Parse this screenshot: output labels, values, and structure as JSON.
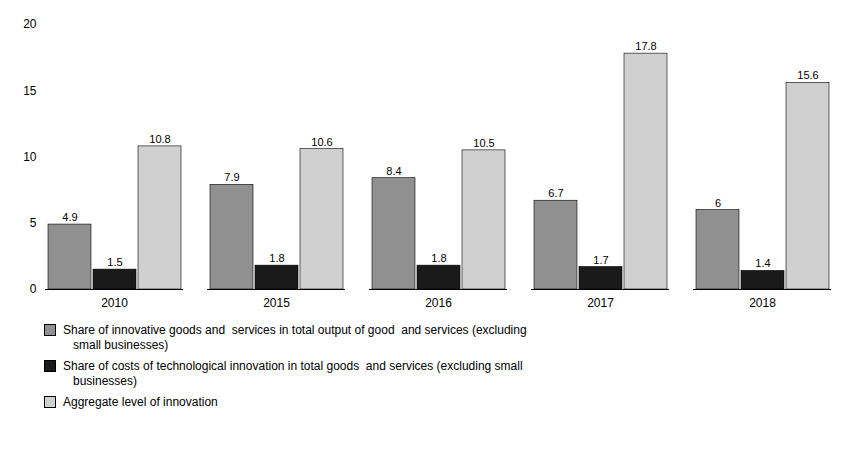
{
  "chart_data": {
    "type": "bar",
    "categories": [
      "2010",
      "2015",
      "2016",
      "2017",
      "2018"
    ],
    "series": [
      {
        "name": "Share of innovative goods and  services in total output of good  and services (excluding\n   small businesses)",
        "color": "#909090",
        "values": [
          4.9,
          7.9,
          8.4,
          6.7,
          6.0
        ]
      },
      {
        "name": "Share of costs of technological innovation in total goods  and services (excluding small\n   businesses)",
        "color": "#1a1a1a",
        "values": [
          1.5,
          1.8,
          1.8,
          1.7,
          1.4
        ]
      },
      {
        "name": "Aggregate level of innovation",
        "color": "#d0d0d0",
        "values": [
          10.8,
          10.6,
          10.5,
          17.8,
          15.6
        ]
      }
    ],
    "ylim": [
      0,
      20
    ],
    "yticks": [
      0,
      5,
      10,
      15,
      20
    ],
    "grid": false,
    "data_labels": true,
    "legend": "lower left"
  }
}
